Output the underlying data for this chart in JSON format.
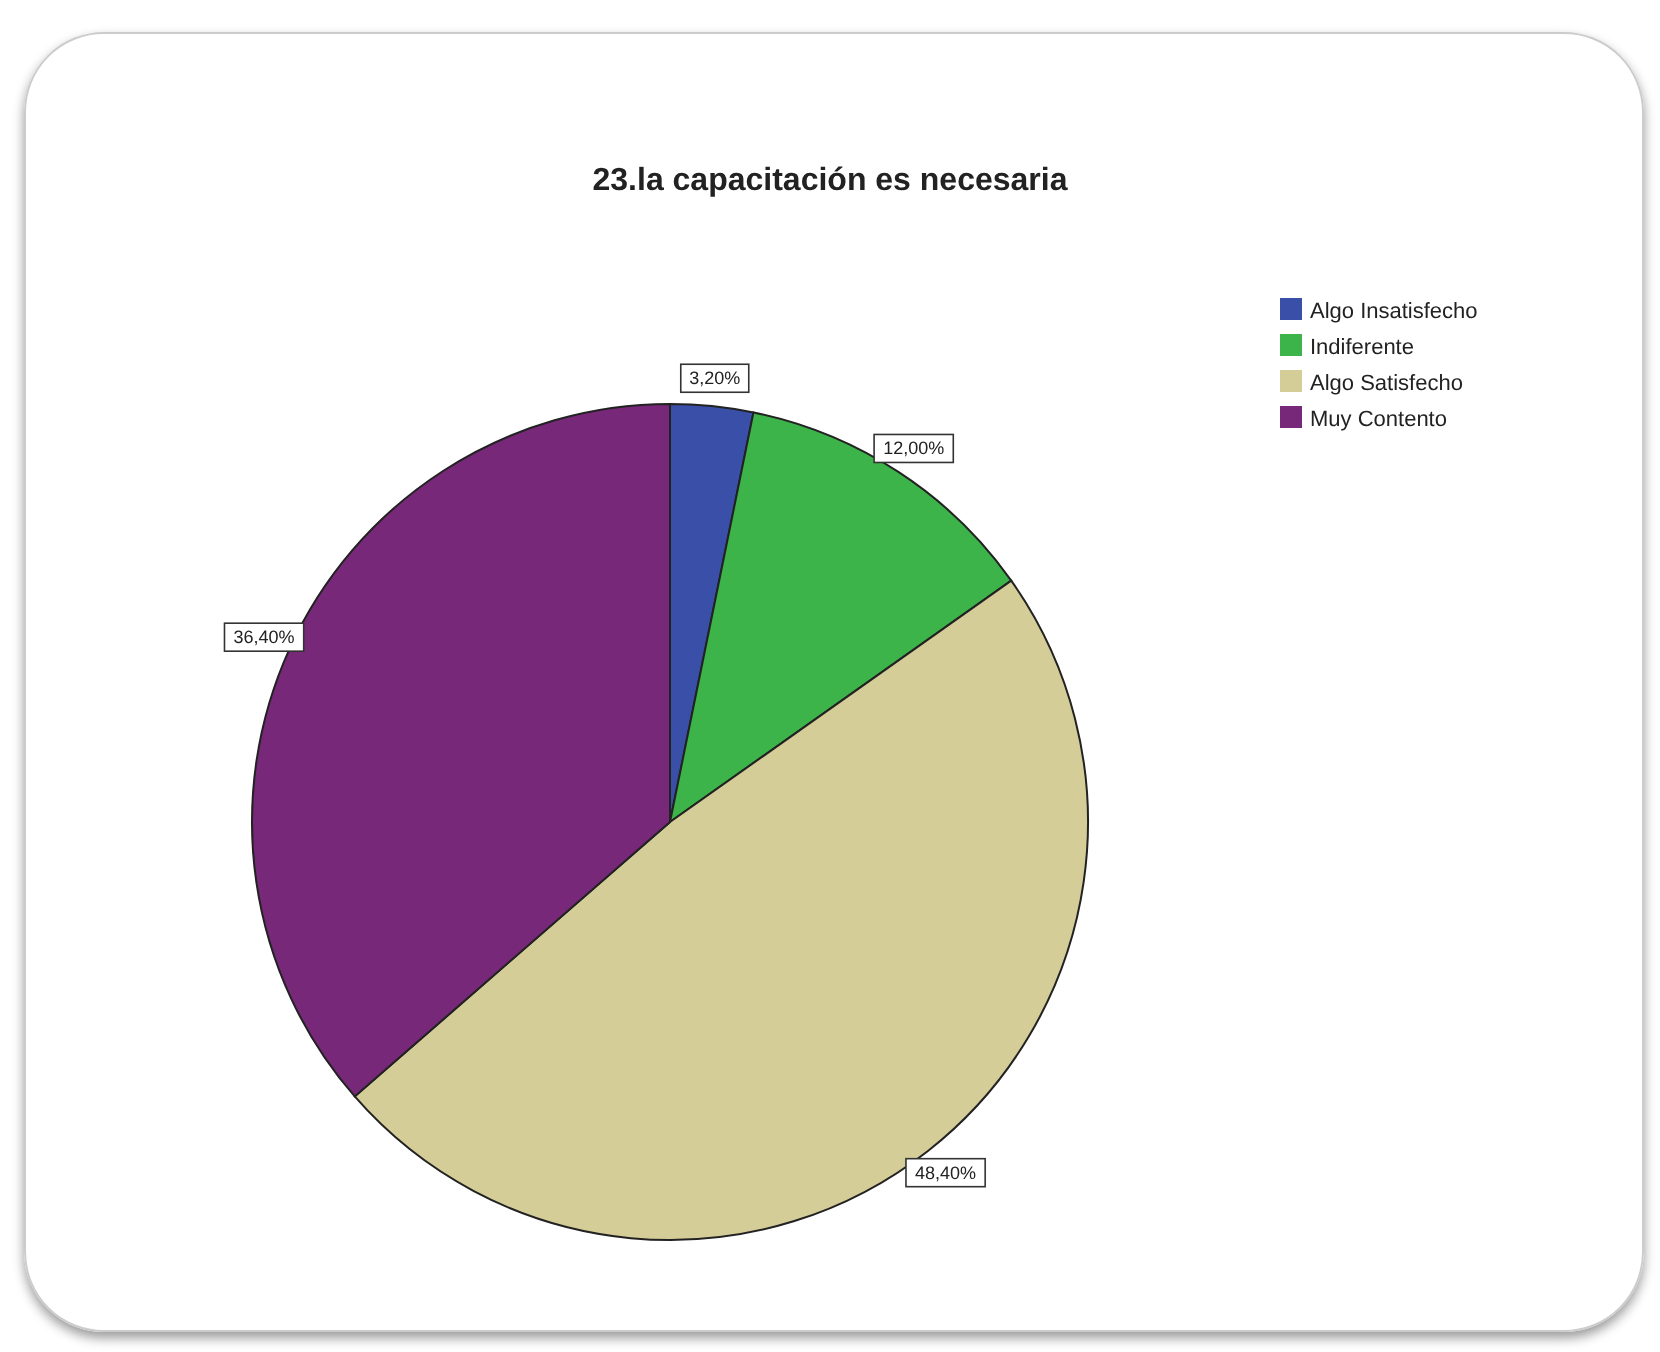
{
  "chart_data": {
    "type": "pie",
    "title": "23.la capacitación es necesaria",
    "categories": [
      "Algo Insatisfecho",
      "Indiferente",
      "Algo Satisfecho",
      "Muy Contento"
    ],
    "values": [
      3.2,
      12.0,
      48.4,
      36.4
    ],
    "colors": [
      "#3a50a8",
      "#3cb44a",
      "#d4cd98",
      "#782878"
    ],
    "value_labels": [
      "3,20%",
      "12,00%",
      "48,40%",
      "36,40%"
    ],
    "legend": "top right"
  }
}
